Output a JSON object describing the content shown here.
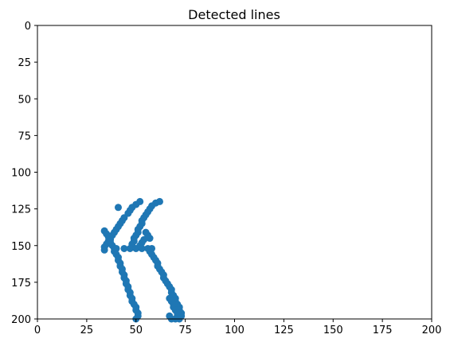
{
  "chart_data": {
    "type": "scatter",
    "title": "Detected lines",
    "xlabel": "",
    "ylabel": "",
    "xlim": [
      0,
      200
    ],
    "ylim": [
      200,
      0
    ],
    "y_inverted": true,
    "grid": false,
    "xticks": [
      0,
      25,
      50,
      75,
      100,
      125,
      150,
      175,
      200
    ],
    "yticks": [
      0,
      25,
      50,
      75,
      100,
      125,
      150,
      175,
      200
    ],
    "marker_color": "#1f77b4",
    "series": [
      {
        "points": [
          [
            41,
            124
          ],
          [
            52,
            120
          ],
          [
            50,
            122
          ],
          [
            48,
            124
          ],
          [
            47,
            126
          ],
          [
            46,
            128
          ],
          [
            44,
            131
          ],
          [
            43,
            133
          ],
          [
            42,
            135
          ],
          [
            41,
            137
          ],
          [
            40,
            139
          ],
          [
            39,
            141
          ],
          [
            38,
            143
          ],
          [
            37,
            145
          ],
          [
            36,
            147
          ],
          [
            35,
            149
          ],
          [
            34,
            151
          ],
          [
            34,
            153
          ],
          [
            34,
            140
          ],
          [
            35,
            142
          ],
          [
            36,
            144
          ],
          [
            37,
            146
          ],
          [
            37,
            148
          ],
          [
            38,
            150
          ],
          [
            39,
            152
          ],
          [
            39,
            154
          ],
          [
            40,
            156
          ],
          [
            41,
            158
          ],
          [
            41,
            160
          ],
          [
            42,
            162
          ],
          [
            42,
            164
          ],
          [
            43,
            166
          ],
          [
            43,
            168
          ],
          [
            44,
            170
          ],
          [
            44,
            172
          ],
          [
            45,
            174
          ],
          [
            45,
            176
          ],
          [
            46,
            178
          ],
          [
            46,
            180
          ],
          [
            47,
            182
          ],
          [
            47,
            184
          ],
          [
            48,
            186
          ],
          [
            48,
            188
          ],
          [
            49,
            190
          ],
          [
            50,
            192
          ],
          [
            50,
            194
          ],
          [
            51,
            196
          ],
          [
            51,
            198
          ],
          [
            50,
            200
          ],
          [
            62,
            120
          ],
          [
            60,
            121
          ],
          [
            58,
            123
          ],
          [
            57,
            125
          ],
          [
            56,
            127
          ],
          [
            55,
            129
          ],
          [
            54,
            131
          ],
          [
            53,
            133
          ],
          [
            53,
            135
          ],
          [
            52,
            137
          ],
          [
            51,
            139
          ],
          [
            51,
            141
          ],
          [
            50,
            143
          ],
          [
            49,
            145
          ],
          [
            49,
            147
          ],
          [
            48,
            149
          ],
          [
            40,
            152
          ],
          [
            44,
            152
          ],
          [
            47,
            152
          ],
          [
            50,
            152
          ],
          [
            53,
            152
          ],
          [
            56,
            152
          ],
          [
            58,
            152
          ],
          [
            57,
            154
          ],
          [
            58,
            156
          ],
          [
            59,
            158
          ],
          [
            60,
            160
          ],
          [
            61,
            162
          ],
          [
            61,
            164
          ],
          [
            62,
            166
          ],
          [
            63,
            168
          ],
          [
            64,
            170
          ],
          [
            64,
            172
          ],
          [
            65,
            174
          ],
          [
            66,
            176
          ],
          [
            67,
            178
          ],
          [
            68,
            180
          ],
          [
            68,
            182
          ],
          [
            69,
            184
          ],
          [
            70,
            186
          ],
          [
            70,
            188
          ],
          [
            71,
            190
          ],
          [
            72,
            192
          ],
          [
            72,
            194
          ],
          [
            73,
            196
          ],
          [
            73,
            198
          ],
          [
            72,
            200
          ],
          [
            57,
            145
          ],
          [
            56,
            143
          ],
          [
            55,
            141
          ],
          [
            53,
            148
          ],
          [
            52,
            150
          ],
          [
            54,
            146
          ],
          [
            67,
            186
          ],
          [
            68,
            188
          ],
          [
            69,
            190
          ],
          [
            69,
            192
          ],
          [
            70,
            194
          ],
          [
            71,
            196
          ],
          [
            71,
            198
          ],
          [
            70,
            200
          ],
          [
            68,
            200
          ],
          [
            67,
            198
          ]
        ]
      }
    ]
  }
}
